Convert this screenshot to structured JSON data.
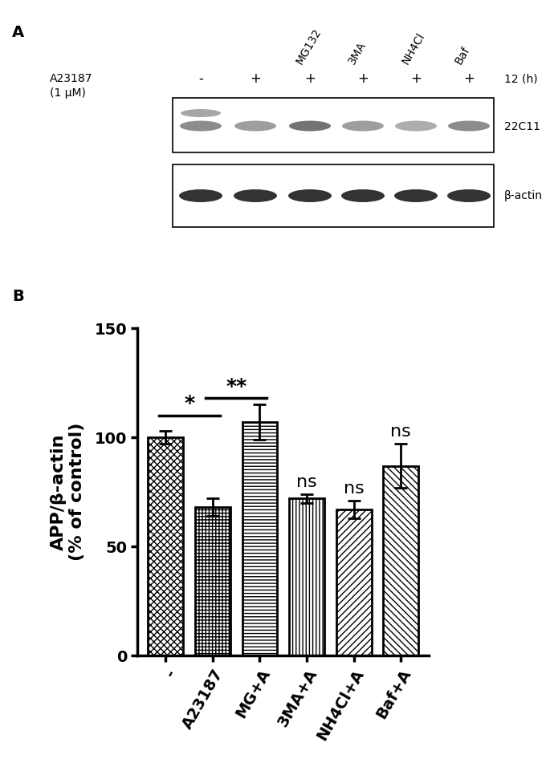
{
  "panel_a": {
    "label": "A",
    "treatment": "A23187",
    "dose": "(1 μM)",
    "time": "12 (h)",
    "lanes": [
      {
        "sign": "-",
        "drug": null
      },
      {
        "sign": "+",
        "drug": null
      },
      {
        "sign": "+",
        "drug": "MG132"
      },
      {
        "sign": "+",
        "drug": "3MA"
      },
      {
        "sign": "+",
        "drug": "NH4Cl"
      },
      {
        "sign": "+",
        "drug": "Baf"
      }
    ],
    "blots": [
      "22C11",
      "β-actin"
    ]
  },
  "panel_b_label": "B",
  "chart_data": {
    "type": "bar",
    "y_label": "APP/β-actin\n(% of control)",
    "categories": [
      "-",
      "A23187",
      "MG+A",
      "3MA+A",
      "NH4Cl+A",
      "Baf+A"
    ],
    "values": [
      100,
      68,
      107,
      72,
      67,
      87
    ],
    "errors": [
      3,
      4,
      8,
      2,
      4,
      10
    ],
    "color": "#ffffff",
    "ylim": [
      0,
      150
    ],
    "yticks": [
      0,
      50,
      100,
      150
    ],
    "annotations": [
      {
        "text": "*",
        "from": 0,
        "to": 1,
        "y": 110
      },
      {
        "text": "**",
        "from": 1,
        "to": 2,
        "y": 118
      },
      {
        "text": "ns",
        "from": 3,
        "to": 3,
        "y": 76
      },
      {
        "text": "ns",
        "from": 4,
        "to": 4,
        "y": 73
      },
      {
        "text": "ns",
        "from": 5,
        "to": 5,
        "y": 99
      }
    ]
  }
}
